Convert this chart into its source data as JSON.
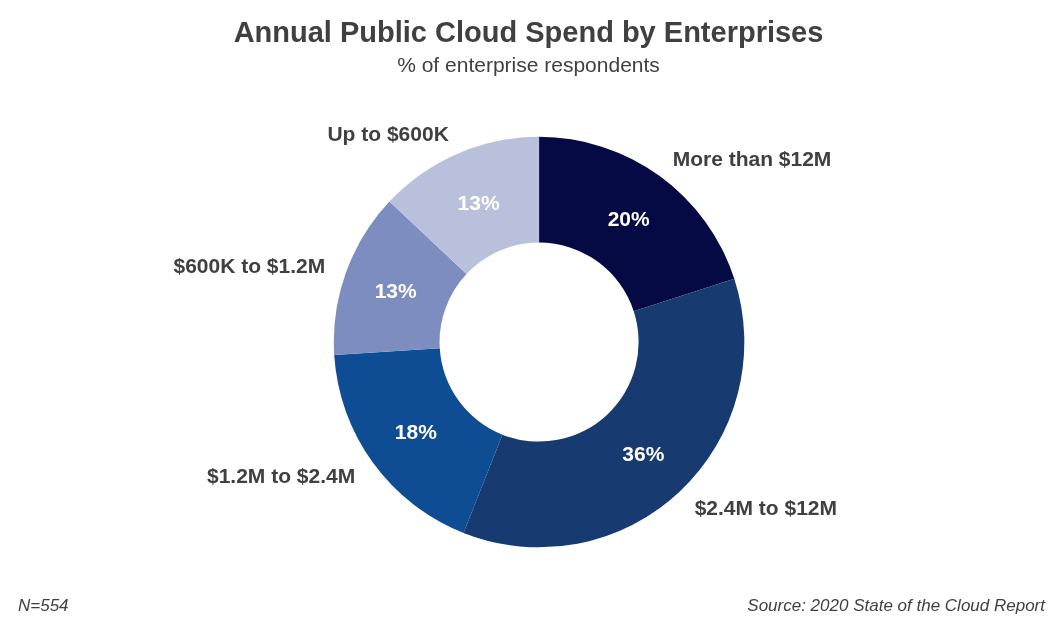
{
  "chart_data": {
    "type": "donut",
    "title": "Annual Public Cloud Spend by Enterprises",
    "subtitle": "% of enterprise respondents",
    "categories": [
      "More than $12M",
      "$2.4M to $12M",
      "$1.2M to $2.4M",
      "$600K to $1.2M",
      "Up to $600K"
    ],
    "values": [
      20,
      36,
      18,
      13,
      13
    ],
    "colors": [
      "#050a45",
      "#173a70",
      "#0e4d94",
      "#7d8dbf",
      "#b9c0dc"
    ],
    "value_labels": [
      "20%",
      "36%",
      "18%",
      "13%",
      "13%"
    ],
    "legend": false,
    "annotations": [
      "N=554",
      "Source: 2020 State of the Cloud Report"
    ]
  }
}
